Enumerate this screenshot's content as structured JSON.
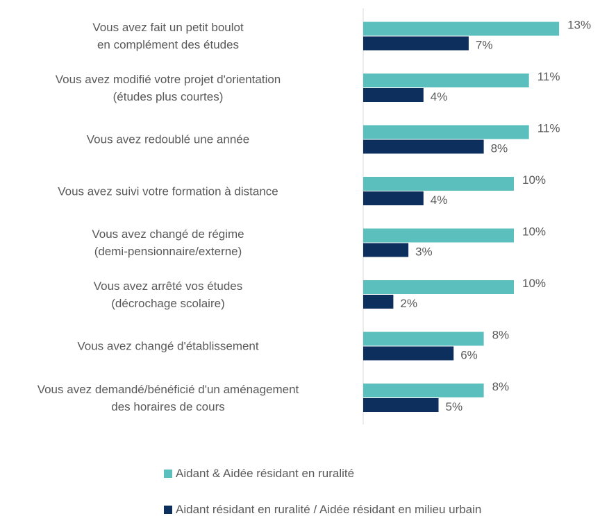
{
  "chart_data": {
    "type": "bar",
    "orientation": "horizontal",
    "categories": [
      "Vous avez fait un petit boulot\nen complément des études",
      "Vous avez modifié votre projet d'orientation\n(études plus courtes)",
      "Vous avez redoublé une année",
      "Vous avez suivi votre formation à distance",
      "Vous avez changé de régime\n(demi-pensionnaire/externe)",
      "Vous avez arrêté vos études\n(décrochage scolaire)",
      "Vous avez changé d'établissement",
      "Vous avez demandé/bénéficié d'un aménagement\ndes horaires de cours"
    ],
    "series": [
      {
        "name": "Aidant & Aidée résidant en ruralité",
        "color": "#5bbfbd",
        "values": [
          13,
          11,
          11,
          10,
          10,
          10,
          8,
          8
        ],
        "value_labels": [
          "13%",
          "11%",
          "11%",
          "10%",
          "10%",
          "10%",
          "8%",
          "8%"
        ]
      },
      {
        "name": "Aidant résidant en ruralité / Aidée résidant en milieu urbain",
        "color": "#0d2f5e",
        "values": [
          7,
          4,
          8,
          4,
          3,
          2,
          6,
          5
        ],
        "value_labels": [
          "7%",
          "4%",
          "8%",
          "4%",
          "3%",
          "2%",
          "6%",
          "5%"
        ]
      }
    ]
  }
}
